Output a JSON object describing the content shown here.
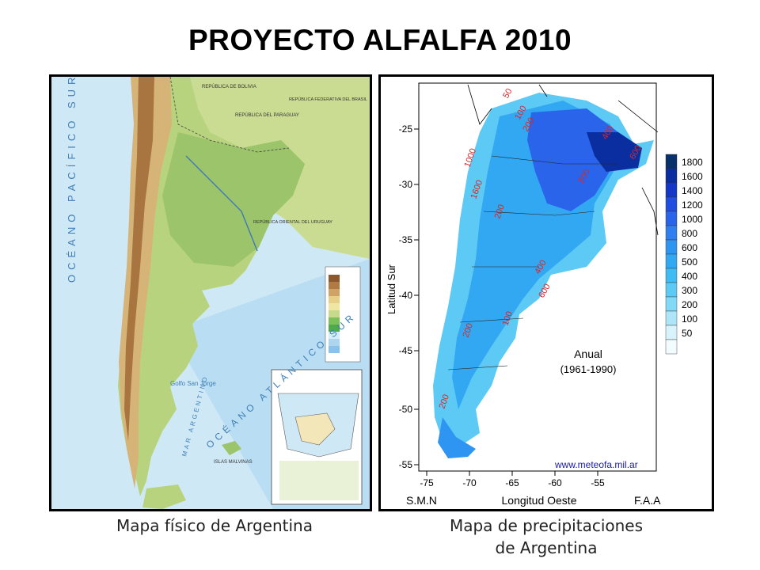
{
  "title": "PROYECTO ALFALFA 2010",
  "captions": {
    "left": "Mapa físico de Argentina",
    "right_line1": "Mapa de precipitaciones",
    "right_line2": "de Argentina"
  },
  "physical_map": {
    "country_labels": [
      "REPÚBLICA DE BOLIVIA",
      "REPÚBLICA DEL PARAGUAY",
      "REPÚBLICA FEDERATIVA DEL BRASIL",
      "REPÚBLICA ORIENTAL DEL URUGUAY"
    ],
    "ocean_labels": {
      "pacific": "OCÉANO PACÍFICO SUR",
      "atlantic": "OCÉANO ATLÁNTICO SUR",
      "sea": "MAR ARGENTINO"
    },
    "place_labels": {
      "gulf": "Golfo San Jorge",
      "islands": "ISLAS MALVINAS"
    },
    "legend_colors": [
      "#8a5a2e",
      "#b07a44",
      "#cfa265",
      "#e6cf86",
      "#efe6a4",
      "#c7d98a",
      "#7fbf5a",
      "#4faa4a",
      "#d6ecf7",
      "#aed5ef",
      "#8cc2ea"
    ],
    "colors": {
      "ocean": "#cfe8f6",
      "ocean_deep": "#a7d3ef",
      "lowland": "#9cc46a",
      "plain": "#b7d37d",
      "andes": "#d6b377",
      "peaks": "#a8743f"
    }
  },
  "precip_map": {
    "ylabel": "Latitud Sur",
    "xlabel": "Longitud Oeste",
    "left_footer": "S.M.N",
    "right_footer": "F.A.A",
    "annotation_line1": "Anual",
    "annotation_line2": "(1961-1990)",
    "website": "www.meteofa.mil.ar",
    "x_ticks": [
      "-75",
      "-70",
      "-65",
      "-60",
      "-55"
    ],
    "y_ticks": [
      "-25",
      "-30",
      "-35",
      "-40",
      "-45",
      "-50",
      "-55"
    ],
    "contour_labels": [
      "50",
      "100",
      "200",
      "400",
      "600",
      "800",
      "1000",
      "1600",
      "200",
      "400",
      "600",
      "200",
      "100",
      "200"
    ],
    "legend": [
      {
        "value": "1800",
        "color": "#08306b"
      },
      {
        "value": "1600",
        "color": "#0a2ea0"
      },
      {
        "value": "1400",
        "color": "#1537c8"
      },
      {
        "value": "1200",
        "color": "#1f4ee0"
      },
      {
        "value": "1000",
        "color": "#2a64ea"
      },
      {
        "value": "800",
        "color": "#2f7ff0"
      },
      {
        "value": "600",
        "color": "#2f95f2"
      },
      {
        "value": "500",
        "color": "#33a8f2"
      },
      {
        "value": "400",
        "color": "#3fbcf3"
      },
      {
        "value": "300",
        "color": "#5ccaf5"
      },
      {
        "value": "200",
        "color": "#82d8f7"
      },
      {
        "value": "100",
        "color": "#aee6f9"
      },
      {
        "value": "50",
        "color": "#d9f3fc"
      },
      {
        "value": "",
        "color": "#f2fbfe"
      }
    ]
  }
}
